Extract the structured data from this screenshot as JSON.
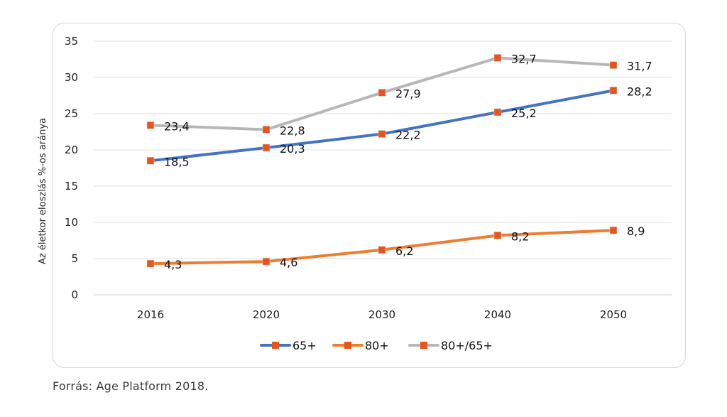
{
  "chart_data": {
    "type": "line",
    "categories": [
      "2016",
      "2020",
      "2030",
      "2040",
      "2050"
    ],
    "ylabel": "Az életkor eloszlás %-os aránya",
    "ylim": [
      0,
      35
    ],
    "yticks": [
      0,
      5,
      10,
      15,
      20,
      25,
      30,
      35
    ],
    "grid": true,
    "legend_position": "bottom",
    "series": [
      {
        "name": "65+",
        "color": "#4472c4",
        "values": [
          18.5,
          20.3,
          22.2,
          25.2,
          28.2
        ],
        "labels": [
          "18,5",
          "20,3",
          "22,2",
          "25,2",
          "28,2"
        ]
      },
      {
        "name": "80+",
        "color": "#ed7d31",
        "values": [
          4.3,
          4.6,
          6.2,
          8.2,
          8.9
        ],
        "labels": [
          "4,3",
          "4,6",
          "6,2",
          "8,2",
          "8,9"
        ]
      },
      {
        "name": "80+/65+",
        "color": "#b7b7b7",
        "values": [
          23.4,
          22.8,
          27.9,
          32.7,
          31.7
        ],
        "labels": [
          "23,4",
          "22,8",
          "27,9",
          "32,7",
          "31,7"
        ]
      }
    ],
    "marker_color": "#e8541a"
  },
  "source_note": "Forrás: Age Platform 2018."
}
